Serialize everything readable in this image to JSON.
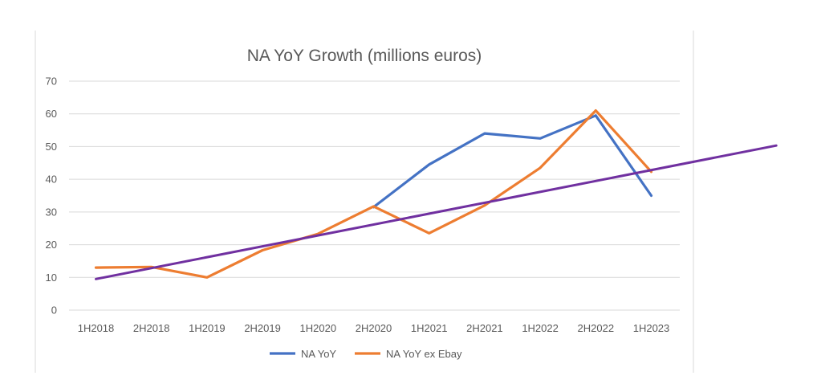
{
  "chart_data": {
    "type": "line",
    "title": "NA YoY Growth (millions euros)",
    "categories": [
      "1H2018",
      "2H2018",
      "1H2019",
      "2H2019",
      "1H2020",
      "2H2020",
      "1H2021",
      "2H2021",
      "1H2022",
      "2H2022",
      "1H2023"
    ],
    "ylim": [
      0,
      70
    ],
    "yticks": [
      0,
      10,
      20,
      30,
      40,
      50,
      60,
      70
    ],
    "grid": true,
    "legend_position": "bottom",
    "series": [
      {
        "name": "NA YoY",
        "color": "#4472C4",
        "values": [
          null,
          null,
          null,
          null,
          null,
          31.5,
          44.5,
          54,
          52.5,
          59.5,
          35
        ]
      },
      {
        "name": "NA YoY ex Ebay",
        "color": "#ED7D31",
        "values": [
          13,
          13.2,
          10,
          18.3,
          23.3,
          31.7,
          23.5,
          32,
          43.5,
          61,
          42.3
        ]
      }
    ],
    "trendline": {
      "color": "#7030A0",
      "start": {
        "x": 0,
        "y": 9.5
      },
      "end": {
        "x": 12.25,
        "y": 50.3
      }
    }
  }
}
